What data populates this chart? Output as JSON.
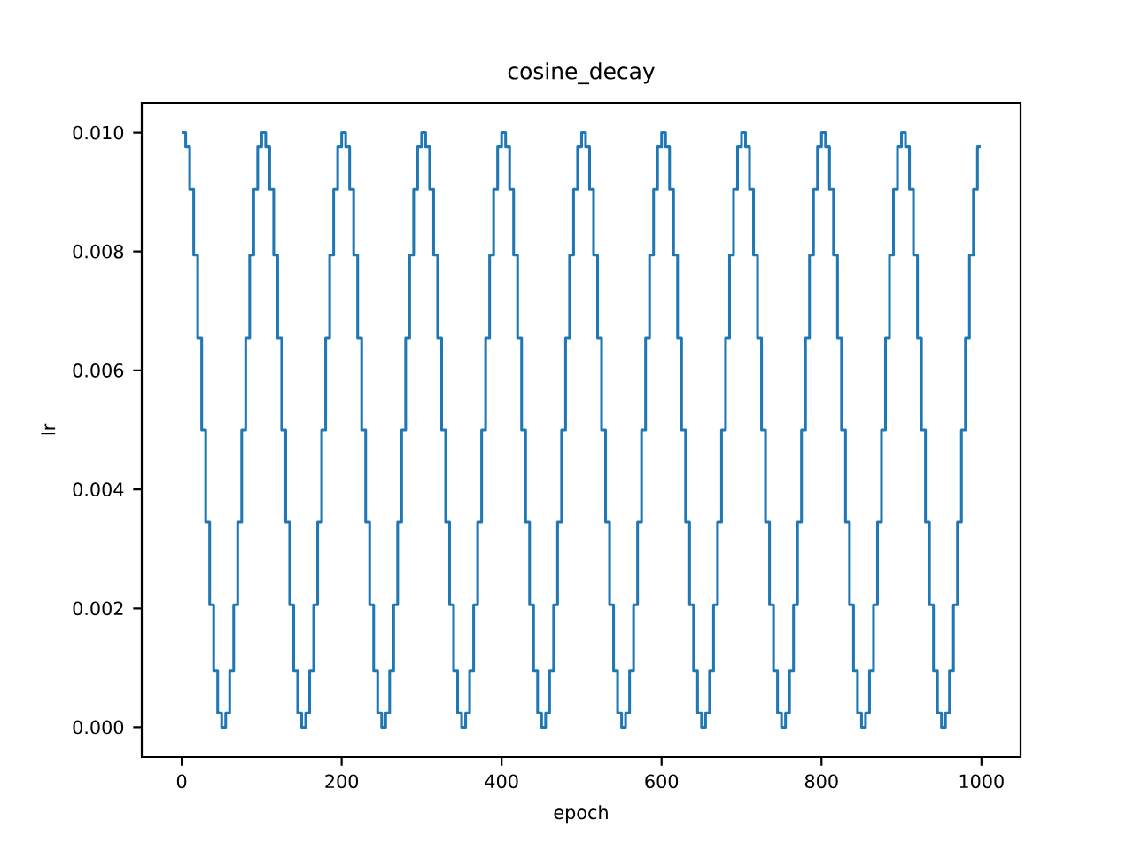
{
  "chart_data": {
    "type": "step",
    "title": "cosine_decay",
    "xlabel": "epoch",
    "ylabel": "lr",
    "xlim": [
      -49.95,
      1048.95
    ],
    "ylim": [
      -0.0005,
      0.0105
    ],
    "xticks": [
      0,
      200,
      400,
      600,
      800,
      1000
    ],
    "yticks": [
      {
        "value": 0,
        "label": "0.000"
      },
      {
        "value": 0.002,
        "label": "0.002"
      },
      {
        "value": 0.004,
        "label": "0.004"
      },
      {
        "value": 0.006,
        "label": "0.006"
      },
      {
        "value": 0.008,
        "label": "0.008"
      },
      {
        "value": 0.01,
        "label": "0.010"
      }
    ],
    "x": [
      0,
      5,
      10,
      15,
      20,
      25,
      30,
      35,
      40,
      45,
      50,
      55,
      60,
      65,
      70,
      75,
      80,
      85,
      90,
      95,
      100,
      105,
      110,
      115,
      120,
      125,
      130,
      135,
      140,
      145,
      150,
      155,
      160,
      165,
      170,
      175,
      180,
      185,
      190,
      195,
      200,
      205,
      210,
      215,
      220,
      225,
      230,
      235,
      240,
      245,
      250,
      255,
      260,
      265,
      270,
      275,
      280,
      285,
      290,
      295,
      300,
      305,
      310,
      315,
      320,
      325,
      330,
      335,
      340,
      345,
      350,
      355,
      360,
      365,
      370,
      375,
      380,
      385,
      390,
      395,
      400,
      405,
      410,
      415,
      420,
      425,
      430,
      435,
      440,
      445,
      450,
      455,
      460,
      465,
      470,
      475,
      480,
      485,
      490,
      495,
      500,
      505,
      510,
      515,
      520,
      525,
      530,
      535,
      540,
      545,
      550,
      555,
      560,
      565,
      570,
      575,
      580,
      585,
      590,
      595,
      600,
      605,
      610,
      615,
      620,
      625,
      630,
      635,
      640,
      645,
      650,
      655,
      660,
      665,
      670,
      675,
      680,
      685,
      690,
      695,
      700,
      705,
      710,
      715,
      720,
      725,
      730,
      735,
      740,
      745,
      750,
      755,
      760,
      765,
      770,
      775,
      780,
      785,
      790,
      795,
      800,
      805,
      810,
      815,
      820,
      825,
      830,
      835,
      840,
      845,
      850,
      855,
      860,
      865,
      870,
      875,
      880,
      885,
      890,
      895,
      900,
      905,
      910,
      915,
      920,
      925,
      930,
      935,
      940,
      945,
      950,
      955,
      960,
      965,
      970,
      975,
      980,
      985,
      990,
      995,
      999
    ],
    "series": [
      {
        "color": "#1f77b4",
        "values": [
          0.01,
          0.00976,
          0.00905,
          0.00794,
          0.00655,
          0.005,
          0.00345,
          0.00206,
          0.00095,
          0.00024,
          0,
          0.00024,
          0.00095,
          0.00206,
          0.00345,
          0.005,
          0.00655,
          0.00794,
          0.00905,
          0.00976,
          0.01,
          0.00976,
          0.00905,
          0.00794,
          0.00655,
          0.005,
          0.00345,
          0.00206,
          0.00095,
          0.00024,
          0,
          0.00024,
          0.00095,
          0.00206,
          0.00345,
          0.005,
          0.00655,
          0.00794,
          0.00905,
          0.00976,
          0.01,
          0.00976,
          0.00905,
          0.00794,
          0.00655,
          0.005,
          0.00345,
          0.00206,
          0.00095,
          0.00024,
          0,
          0.00024,
          0.00095,
          0.00206,
          0.00345,
          0.005,
          0.00655,
          0.00794,
          0.00905,
          0.00976,
          0.01,
          0.00976,
          0.00905,
          0.00794,
          0.00655,
          0.005,
          0.00345,
          0.00206,
          0.00095,
          0.00024,
          0,
          0.00024,
          0.00095,
          0.00206,
          0.00345,
          0.005,
          0.00655,
          0.00794,
          0.00905,
          0.00976,
          0.01,
          0.00976,
          0.00905,
          0.00794,
          0.00655,
          0.005,
          0.00345,
          0.00206,
          0.00095,
          0.00024,
          0,
          0.00024,
          0.00095,
          0.00206,
          0.00345,
          0.005,
          0.00655,
          0.00794,
          0.00905,
          0.00976,
          0.01,
          0.00976,
          0.00905,
          0.00794,
          0.00655,
          0.005,
          0.00345,
          0.00206,
          0.00095,
          0.00024,
          0,
          0.00024,
          0.00095,
          0.00206,
          0.00345,
          0.005,
          0.00655,
          0.00794,
          0.00905,
          0.00976,
          0.01,
          0.00976,
          0.00905,
          0.00794,
          0.00655,
          0.005,
          0.00345,
          0.00206,
          0.00095,
          0.00024,
          0,
          0.00024,
          0.00095,
          0.00206,
          0.00345,
          0.005,
          0.00655,
          0.00794,
          0.00905,
          0.00976,
          0.01,
          0.00976,
          0.00905,
          0.00794,
          0.00655,
          0.005,
          0.00345,
          0.00206,
          0.00095,
          0.00024,
          0,
          0.00024,
          0.00095,
          0.00206,
          0.00345,
          0.005,
          0.00655,
          0.00794,
          0.00905,
          0.00976,
          0.01,
          0.00976,
          0.00905,
          0.00794,
          0.00655,
          0.005,
          0.00345,
          0.00206,
          0.00095,
          0.00024,
          0,
          0.00024,
          0.00095,
          0.00206,
          0.00345,
          0.005,
          0.00655,
          0.00794,
          0.00905,
          0.00976,
          0.01,
          0.00976,
          0.00905,
          0.00794,
          0.00655,
          0.005,
          0.00345,
          0.00206,
          0.00095,
          0.00024,
          0,
          0.00024,
          0.00095,
          0.00206,
          0.00345,
          0.005,
          0.00655,
          0.00794,
          0.00905,
          0.00976,
          0.00976
        ]
      }
    ]
  }
}
